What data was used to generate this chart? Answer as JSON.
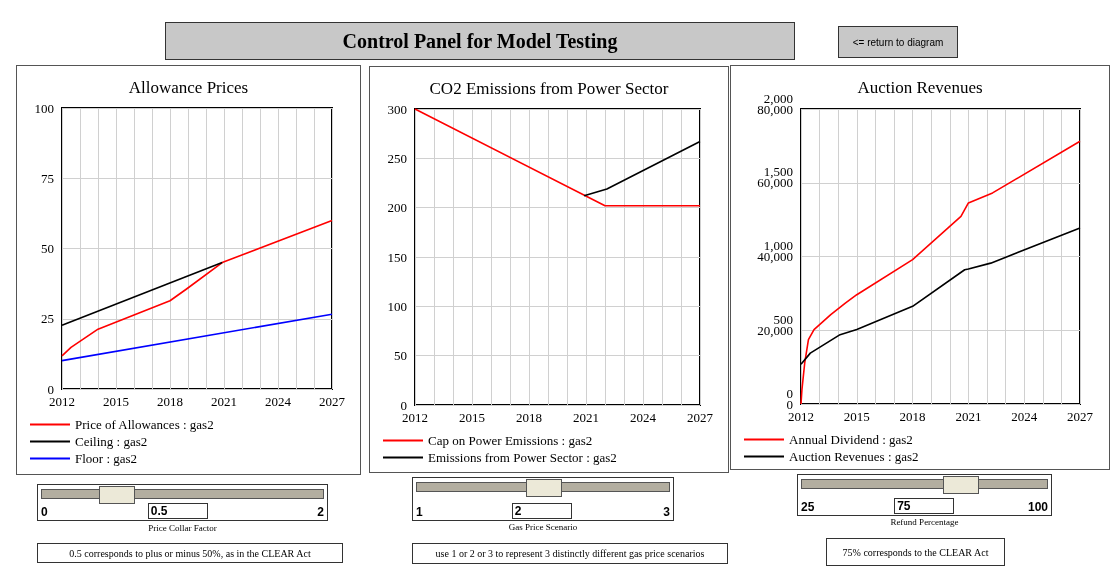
{
  "chart_data": [
    {
      "type": "other",
      "title": "Control Panel for Model Testing",
      "annotations": [
        "<= return to diagram"
      ]
    },
    {
      "type": "line",
      "title": "Allowance Prices",
      "xlim": [
        2012,
        2027
      ],
      "xticks": [
        2012,
        2015,
        2018,
        2021,
        2024,
        2027
      ],
      "ylim": [
        0,
        100
      ],
      "yticks": [
        0,
        25,
        50,
        75,
        100
      ],
      "grid": true,
      "legend": "bottom",
      "series": [
        {
          "name": "Price of Allowances : gas2",
          "color": "#ff0000",
          "x": [
            2012,
            2012.5,
            2014,
            2018,
            2018.9,
            2020.9,
            2027
          ],
          "values": [
            11.8,
            14.8,
            21.3,
            31.4,
            35.5,
            45,
            60
          ]
        },
        {
          "name": "Ceiling : gas2",
          "color": "#000000",
          "x": [
            2012,
            2020.9
          ],
          "values": [
            22.7,
            45
          ]
        },
        {
          "name": "Floor : gas2",
          "color": "#0000ff",
          "x": [
            2012,
            2027
          ],
          "values": [
            10.1,
            26.6
          ]
        }
      ],
      "annotations": [
        "0",
        "0.5",
        "2",
        "Price Collar Factor",
        "0.5 corresponds to plus or minus 50%, as in the CLEAR Act"
      ]
    },
    {
      "type": "line",
      "title": "CO2 Emissions from Power Sector",
      "xlim": [
        2012,
        2027
      ],
      "xticks": [
        2012,
        2015,
        2018,
        2021,
        2024,
        2027
      ],
      "ylim": [
        0,
        300
      ],
      "yticks": [
        0,
        50,
        100,
        150,
        200,
        250,
        300
      ],
      "grid": true,
      "legend": "bottom",
      "series": [
        {
          "name": "Cap on Power Emissions : gas2",
          "color": "#ff0000",
          "x": [
            2012,
            2022,
            2027
          ],
          "values": [
            300,
            202,
            202
          ]
        },
        {
          "name": "Emissions from Power Sector : gas2",
          "color": "#000000",
          "x": [
            2020.9,
            2022.1,
            2027
          ],
          "values": [
            212,
            219,
            267
          ]
        }
      ],
      "annotations": [
        "1",
        "2",
        "3",
        "Gas Price Scenario",
        "use 1 or 2 or 3 to represent 3 distinctly different gas price scenarios"
      ]
    },
    {
      "type": "line",
      "title": "Auction Revenues",
      "xlim": [
        2012,
        2027
      ],
      "xticks": [
        2012,
        2015,
        2018,
        2021,
        2024,
        2027
      ],
      "ylim": [
        0,
        2000
      ],
      "yticks": [
        0,
        500,
        {
          "value": 1000,
          "label": "1,000"
        },
        {
          "value": 1500,
          "label": "1,500"
        },
        {
          "value": 2000,
          "label": "2,000"
        }
      ],
      "y2lim": [
        0,
        80000
      ],
      "y2ticks": [
        0,
        {
          "value": 20000,
          "label": "20,000"
        },
        {
          "value": 40000,
          "label": "40,000"
        },
        {
          "value": 60000,
          "label": "60,000"
        },
        {
          "value": 80000,
          "label": "80,000"
        }
      ],
      "grid": true,
      "legend": "bottom",
      "series": [
        {
          "name": "Annual Dividend : gas2",
          "color": "#ff0000",
          "x": [
            2012,
            2012.05,
            2012.2,
            2012.4,
            2012.7,
            2013.6,
            2014.4,
            2015,
            2018,
            2020.6,
            2021,
            2022.3,
            2027
          ],
          "values": [
            0,
            97,
            278,
            436,
            504,
            606,
            685,
            741,
            979,
            1272,
            1363,
            1431,
            1781
          ]
        },
        {
          "name": "Auction Revenues : gas2",
          "color": "#000000",
          "axis": "y2",
          "x": [
            2012,
            2012.5,
            2014.1,
            2015,
            2018,
            2020.8,
            2021,
            2022.2,
            2027
          ],
          "values": [
            10800,
            13800,
            18800,
            20200,
            26500,
            36400,
            36600,
            38200,
            47700
          ]
        }
      ],
      "annotations": [
        "25",
        "75",
        "100",
        "Refund Percentage",
        "75% corresponds to the  CLEAR Act"
      ]
    }
  ]
}
